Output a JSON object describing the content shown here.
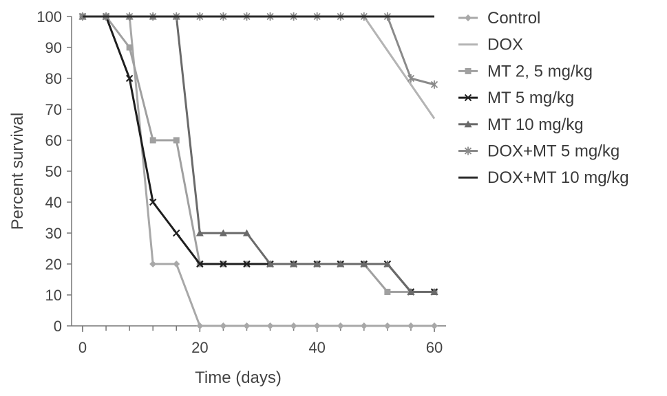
{
  "chart_data": {
    "type": "line",
    "title": "",
    "xlabel": "Time (days)",
    "ylabel": "Percent survival",
    "xlim": [
      0,
      60
    ],
    "ylim": [
      0,
      100
    ],
    "xticks": [
      0,
      20,
      40,
      60
    ],
    "yticks": [
      0,
      10,
      20,
      30,
      40,
      50,
      60,
      70,
      80,
      90,
      100
    ],
    "grid": false,
    "legend_position": "right",
    "series": [
      {
        "name": "Control",
        "color": "#a8a8a8",
        "marker": "diamond",
        "x": [
          0,
          4,
          8,
          12,
          16,
          20,
          24,
          28,
          32,
          36,
          40,
          44,
          48,
          52,
          56,
          60
        ],
        "y": [
          100,
          100,
          100,
          20,
          20,
          0,
          0,
          0,
          0,
          0,
          0,
          0,
          0,
          0,
          0,
          0
        ]
      },
      {
        "name": "DOX",
        "color": "#b4b4b4",
        "marker": "none",
        "x": [
          0,
          4,
          8,
          12,
          16,
          20,
          24,
          28,
          32,
          36,
          40,
          44,
          48,
          52,
          56,
          60
        ],
        "y": [
          100,
          100,
          100,
          100,
          100,
          100,
          100,
          100,
          100,
          100,
          100,
          100,
          100,
          89,
          78,
          67
        ]
      },
      {
        "name": "MT 2, 5 mg/kg",
        "color": "#a0a0a0",
        "marker": "square",
        "x": [
          0,
          4,
          8,
          12,
          16,
          20,
          24,
          28,
          32,
          36,
          40,
          44,
          48,
          52,
          56,
          60
        ],
        "y": [
          100,
          100,
          90,
          60,
          60,
          20,
          20,
          20,
          20,
          20,
          20,
          20,
          20,
          11,
          11,
          11
        ]
      },
      {
        "name": "MT 5 mg/kg",
        "color": "#1e1e1e",
        "marker": "x",
        "x": [
          0,
          4,
          8,
          12,
          16,
          20,
          24,
          28,
          32,
          36,
          40,
          44,
          48,
          52,
          56,
          60
        ],
        "y": [
          100,
          100,
          80,
          40,
          30,
          20,
          20,
          20,
          20,
          20,
          20,
          20,
          20,
          20,
          11,
          11
        ]
      },
      {
        "name": "MT 10 mg/kg",
        "color": "#6a6a6a",
        "marker": "triangle",
        "x": [
          0,
          4,
          8,
          12,
          16,
          20,
          24,
          28,
          32,
          36,
          40,
          44,
          48,
          52,
          56,
          60
        ],
        "y": [
          100,
          100,
          100,
          100,
          100,
          30,
          30,
          30,
          20,
          20,
          20,
          20,
          20,
          20,
          11,
          11
        ]
      },
      {
        "name": "DOX+MT 5 mg/kg",
        "color": "#8a8a8a",
        "marker": "star",
        "x": [
          0,
          4,
          8,
          12,
          16,
          20,
          24,
          28,
          32,
          36,
          40,
          44,
          48,
          52,
          56,
          60
        ],
        "y": [
          100,
          100,
          100,
          100,
          100,
          100,
          100,
          100,
          100,
          100,
          100,
          100,
          100,
          100,
          80,
          78
        ]
      },
      {
        "name": "DOX+MT 10 mg/kg",
        "color": "#2a2a2a",
        "marker": "none",
        "x": [
          0,
          4,
          8,
          12,
          16,
          20,
          24,
          28,
          32,
          36,
          40,
          44,
          48,
          52,
          56,
          60
        ],
        "y": [
          100,
          100,
          100,
          100,
          100,
          100,
          100,
          100,
          100,
          100,
          100,
          100,
          100,
          100,
          100,
          100
        ]
      }
    ]
  }
}
